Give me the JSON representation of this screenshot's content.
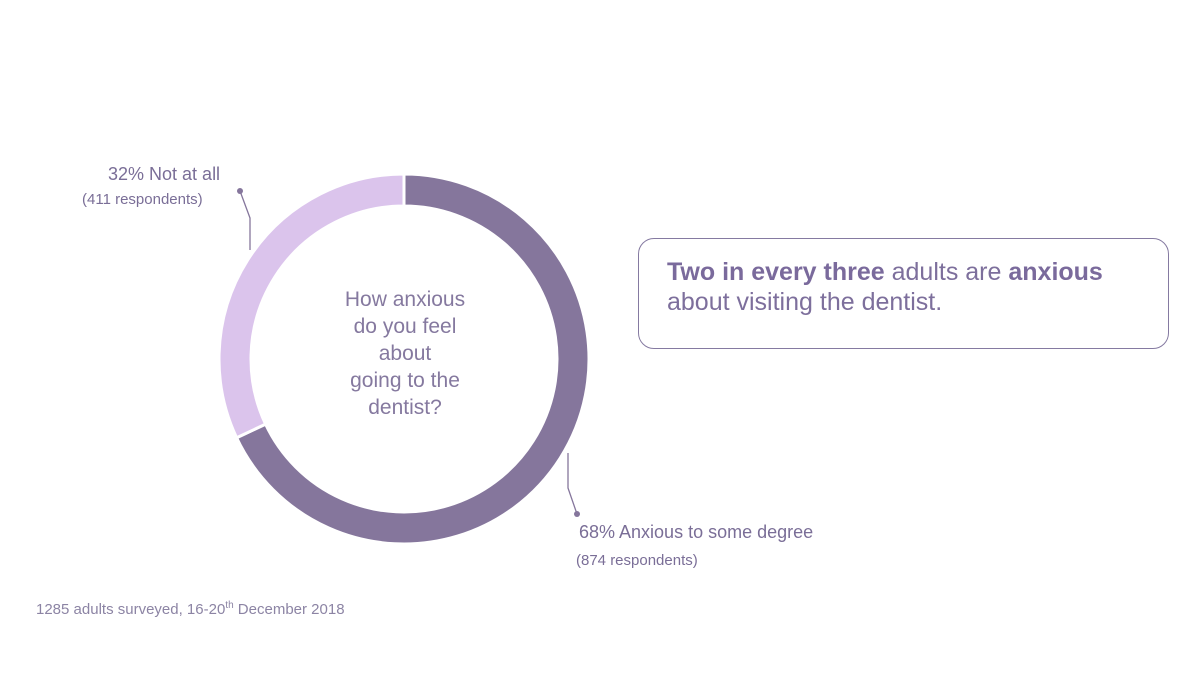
{
  "chart_data": {
    "type": "pie",
    "variant": "donut",
    "center_text": [
      "How anxious",
      "do you feel",
      "about",
      "going to the",
      "dentist?"
    ],
    "slices": [
      {
        "label": "Anxious to some degree",
        "percent": 68,
        "respondents": 874,
        "color": "#85769c",
        "label_text": "68% Anxious to some degree",
        "sub_text": "(874 respondents)"
      },
      {
        "label": "Not at all",
        "percent": 32,
        "respondents": 411,
        "color": "#dbc4ec",
        "label_text": "32% Not at all",
        "sub_text": "(411 respondents)"
      }
    ]
  },
  "callout": {
    "bold1": "Two in every three",
    "text1": " adults are ",
    "bold2": "anxious",
    "text2": " about visiting the dentist."
  },
  "footnote": {
    "before": "1285 adults surveyed, 16-20",
    "sup": "th",
    "after": " December 2018"
  },
  "colors": {
    "text": "#7d6f9c",
    "border": "#857aa1",
    "leader": "#85769c"
  }
}
